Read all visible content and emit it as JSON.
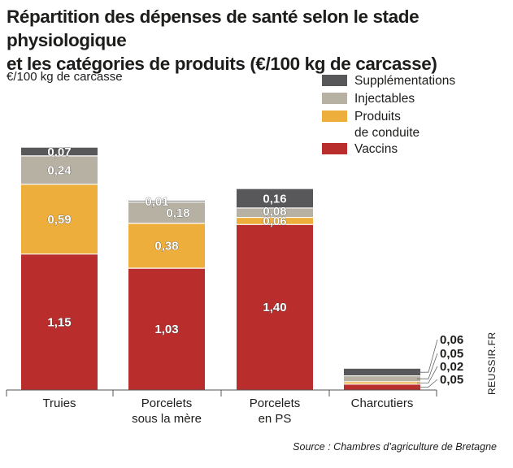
{
  "chart_data": {
    "type": "bar",
    "stacked": true,
    "title": "Répartition des dépenses de santé selon le stade physiologique et les catégories de produits (€/100 kg de carcasse)",
    "ylabel": "€/100 kg de carcasse",
    "categories": [
      "Truies",
      "Porcelets\nsous la mère",
      "Porcelets\nen PS",
      "Charcutiers"
    ],
    "series": [
      {
        "name": "Vaccins",
        "values": [
          1.15,
          1.03,
          1.4,
          0.05
        ],
        "color": "#b92d2c"
      },
      {
        "name": "Produits\nde conduite",
        "values": [
          0.59,
          0.38,
          0.06,
          0.02
        ],
        "color": "#eeae3c"
      },
      {
        "name": "Injectables",
        "values": [
          0.24,
          0.18,
          0.08,
          0.05
        ],
        "color": "#b6b1a2"
      },
      {
        "name": "Supplémentations",
        "values": [
          0.07,
          0.01,
          0.16,
          0.06
        ],
        "color": "#58585a"
      }
    ],
    "data_labels": [
      [
        "1,15",
        "1,03",
        "1,40",
        "0,05"
      ],
      [
        "0,59",
        "0,38",
        "0,06",
        "0,02"
      ],
      [
        "0,24",
        "0,18",
        "0,08",
        "0,05"
      ],
      [
        "0,07",
        "0,01",
        "0,16",
        "0,06"
      ]
    ],
    "legend_order": [
      "Supplémentations",
      "Injectables",
      "Produits\nde conduite",
      "Vaccins"
    ],
    "legend_position": "top-right",
    "ylim": [
      0,
      2.35
    ],
    "grid": false
  },
  "title_lines": [
    "Répartition des dépenses de santé selon le stade physiologique",
    "et les catégories de produits (€/100 kg de carcasse)"
  ],
  "unit_label": "€/100 kg de carcasse",
  "source": "Source : Chambres d’agriculture de Bretagne",
  "brand": "REUSSIR.FR"
}
